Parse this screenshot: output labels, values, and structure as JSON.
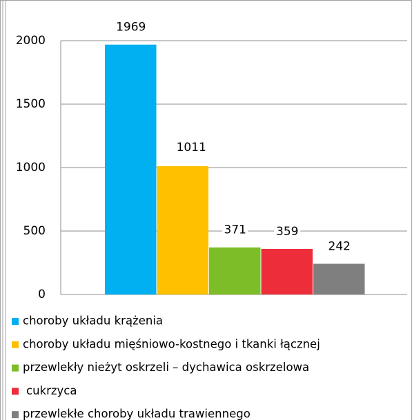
{
  "chart_data": {
    "type": "bar",
    "series": [
      {
        "name": "choroby układu krążenia",
        "color": "#00b0f0",
        "values": [
          1969
        ]
      },
      {
        "name": "choroby układu mięśniowo-kostnego i tkanki łącznej",
        "color": "#ffc000",
        "values": [
          1011
        ]
      },
      {
        "name": "przewlekły nieżyt oskrzeli – dychawica oskrzelowa",
        "color": "#7dbd27",
        "values": [
          371
        ]
      },
      {
        "name": "cukrzyca",
        "color": "#ee2d3b",
        "values": [
          359
        ]
      },
      {
        "name": "przewlekłe choroby układu trawiennego",
        "color": "#7f7f7f",
        "values": [
          242
        ]
      }
    ],
    "ylim": [
      0,
      2000
    ],
    "yticks": [
      0,
      500,
      1000,
      1500,
      2000
    ],
    "grid": true,
    "legend": "bottom"
  }
}
